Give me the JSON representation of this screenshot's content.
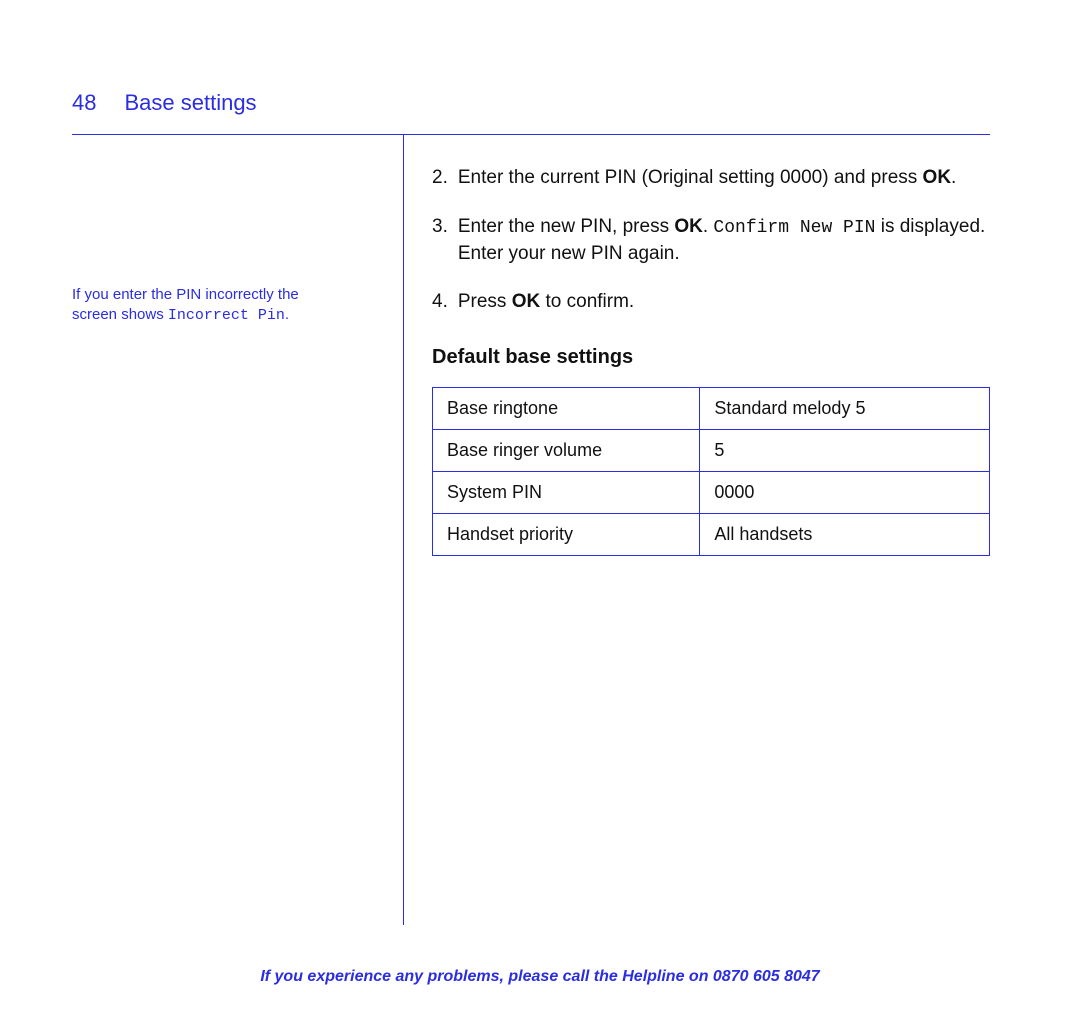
{
  "colors": {
    "accent": "#2a2de0",
    "text": "#111111",
    "background": "#ffffff"
  },
  "header": {
    "page_number": "48",
    "title": "Base settings"
  },
  "side_note": {
    "line1": "If you enter the PIN incorrectly the",
    "line2_prefix": "screen shows ",
    "line2_mono": "Incorrect Pin",
    "line2_suffix": "."
  },
  "steps": [
    {
      "num": "2.",
      "parts": [
        {
          "t": "Enter the current PIN (Original setting 0000) and press "
        },
        {
          "t": "OK",
          "bold": true
        },
        {
          "t": "."
        }
      ]
    },
    {
      "num": "3.",
      "parts": [
        {
          "t": "Enter the new PIN, press "
        },
        {
          "t": "OK",
          "bold": true
        },
        {
          "t": ". "
        },
        {
          "t": "Confirm New PIN",
          "mono": true
        },
        {
          "t": " is displayed. Enter your new PIN again."
        }
      ]
    },
    {
      "num": "4.",
      "parts": [
        {
          "t": "Press "
        },
        {
          "t": "OK",
          "bold": true
        },
        {
          "t": " to confirm."
        }
      ]
    }
  ],
  "subheading": "Default base settings",
  "table": {
    "rows": [
      [
        "Base ringtone",
        "Standard melody 5"
      ],
      [
        "Base ringer volume",
        "5"
      ],
      [
        "System PIN",
        "0000"
      ],
      [
        "Handset priority",
        "All handsets"
      ]
    ]
  },
  "footer": {
    "text": "If you experience any problems, please call the Helpline on ",
    "phone": "0870 605 8047"
  }
}
